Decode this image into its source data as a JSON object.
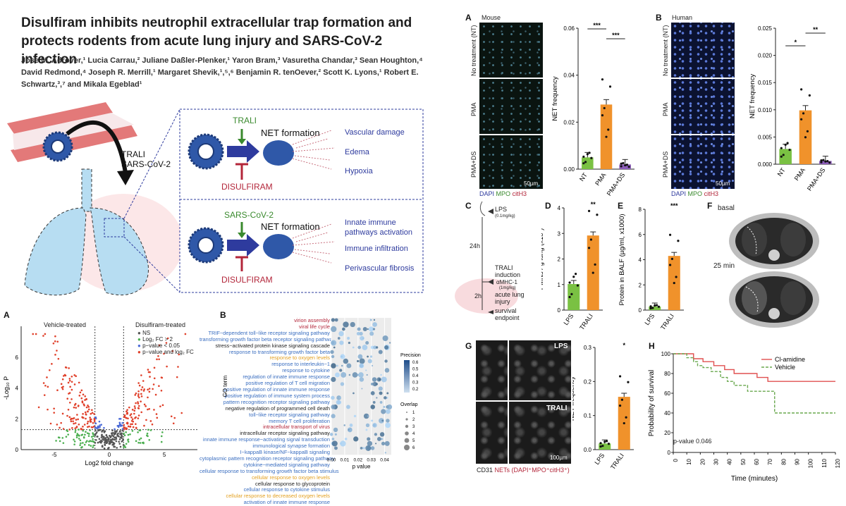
{
  "header": {
    "title": "Disulfiram inhibits neutrophil extracellular trap formation and protects rodents from acute lung injury and SARS-CoV-2 infection",
    "authors": "Jose M. Adrover,¹ Lucia Carrau,² Juliane Daßler-Plenker,¹ Yaron Bram,³ Vasuretha Chandar,³ Sean Houghton,⁴ David Redmond,⁴ Joseph R. Merrill,¹ Margaret Shevik,¹,⁵,⁶ Benjamin R. tenOever,² Scott K. Lyons,¹ Robert E. Schwartz,³,⁷ and Mikala Egeblad¹"
  },
  "schematic": {
    "trali_sars": "TRALI\nSARS-CoV-2",
    "box1": {
      "trigger": "TRALI",
      "net": "NET formation",
      "drug": "DISULFIRAM",
      "effects": [
        "Vascular damage",
        "Edema",
        "Hypoxia"
      ]
    },
    "box2": {
      "trigger": "SARS-CoV-2",
      "net": "NET formation",
      "drug": "DISULFIRAM",
      "effects": [
        "Innate immune pathways activation",
        "Immune infiltration",
        "Perivascular fibrosis"
      ]
    },
    "colors": {
      "blue": "#2e3b9e",
      "green": "#3a8a2e",
      "red": "#b3263a"
    }
  },
  "panelA_mouse": {
    "letter": "A",
    "species": "Mouse",
    "rows": [
      "No treatment (NT)",
      "PMA",
      "PMA+DS"
    ],
    "scale": "50µm",
    "stain": {
      "dapi": "DAPI",
      "mpo": "MPO",
      "cith3": "citH3"
    },
    "sig": [
      "***",
      "***"
    ]
  },
  "panelB_human": {
    "letter": "B",
    "species": "Human",
    "rows": [
      "No treatment (NT)",
      "PMA",
      "PMA+DS"
    ],
    "scale": "50µm",
    "stain": {
      "dapi": "DAPI",
      "mpo": "MPO",
      "cith3": "citH3"
    },
    "sig": [
      "*",
      "**"
    ]
  },
  "panelC": {
    "letter": "C",
    "lps": "LPS",
    "lps_dose": "(0.1mg/kg)",
    "t1": "24h",
    "trali": "TRALI induction",
    "amhc": "αMHC-1",
    "amhc_dose": "(1mg/kg)",
    "t2": "2h",
    "ali": "acute lung injury",
    "end": "survival endpoint"
  },
  "panelD": {
    "letter": "D",
    "sig": "**"
  },
  "panelE": {
    "letter": "E",
    "sig": "***"
  },
  "panelF": {
    "letter": "F",
    "t1": "basal",
    "t2": "25 min"
  },
  "panelG": {
    "letter": "G",
    "lps": "LPS",
    "trali": "TRALI",
    "scale": "100µm",
    "caption_cd31": "CD31",
    "caption_nets": "NETs (DAPI⁺MPO⁺citH3⁺)",
    "sig": "*"
  },
  "panelH": {
    "letter": "H",
    "pval": "p-value 0.046"
  },
  "volcano": {
    "letter": "A",
    "left_label": "Vehicle-treated",
    "right_label": "Disulfiram-treated",
    "legend": [
      "NS",
      "Log₂ FC > 2",
      "p−value < 0.05",
      "p−value and log₂ FC"
    ]
  },
  "goplot": {
    "letter": "B",
    "terms": [
      {
        "t": "virion assembly",
        "c": "#b3263a"
      },
      {
        "t": "viral life cycle",
        "c": "#b3263a"
      },
      {
        "t": "TRIF−dependent toll−like receptor signaling pathway",
        "c": "#3a6ec0"
      },
      {
        "t": "transforming growth factor beta receptor signaling pathway",
        "c": "#3a6ec0"
      },
      {
        "t": "stress−activated protein kinase signaling cascade",
        "c": "#222"
      },
      {
        "t": "response to transforming growth factor beta",
        "c": "#3a6ec0"
      },
      {
        "t": "response to oxygen levels",
        "c": "#e3a020"
      },
      {
        "t": "response to interleukin−1",
        "c": "#3a6ec0"
      },
      {
        "t": "response to cytokine",
        "c": "#3a6ec0"
      },
      {
        "t": "regulation of innate immune response",
        "c": "#3a6ec0"
      },
      {
        "t": "positive regulation of T cell migration",
        "c": "#3a6ec0"
      },
      {
        "t": "positive regulation of innate immune response",
        "c": "#3a6ec0"
      },
      {
        "t": "positive regulation of immune system process",
        "c": "#3a6ec0"
      },
      {
        "t": "pattern recognition receptor signaling pathway",
        "c": "#3a6ec0"
      },
      {
        "t": "negative regulation of programmed cell death",
        "c": "#222"
      },
      {
        "t": "toll−like receptor signaling pathway",
        "c": "#3a6ec0"
      },
      {
        "t": "memory T cell proliferation",
        "c": "#3a6ec0"
      },
      {
        "t": "intracellular transport of virus",
        "c": "#b3263a"
      },
      {
        "t": "intracellular receptor signaling pathway",
        "c": "#222"
      },
      {
        "t": "innate immune response−activating signal transduction",
        "c": "#3a6ec0"
      },
      {
        "t": "immunological synapse formation",
        "c": "#3a6ec0"
      },
      {
        "t": "I−kappaB kinase/NF−kappaB signaling",
        "c": "#3a6ec0"
      },
      {
        "t": "cytoplasmic pattern recognition receptor signaling pathway",
        "c": "#3a6ec0"
      },
      {
        "t": "cytokine−mediated signaling pathway",
        "c": "#3a6ec0"
      },
      {
        "t": "cellular response to transforming growth factor beta stimulus",
        "c": "#3a6ec0"
      },
      {
        "t": "cellular response to oxygen levels",
        "c": "#e3a020"
      },
      {
        "t": "cellular response to glycoprotein",
        "c": "#222"
      },
      {
        "t": "cellular response to cytokine stimulus",
        "c": "#3a6ec0"
      },
      {
        "t": "cellular response to decreased oxygen levels",
        "c": "#e3a020"
      },
      {
        "t": "activation of innate immune response",
        "c": "#3a6ec0"
      }
    ],
    "legend_precision": "Precision",
    "legend_overlap": "Overlap"
  },
  "chart_data": [
    {
      "type": "bar",
      "panel": "A",
      "categories": [
        "NT",
        "PMA",
        "PMA+DS"
      ],
      "values": [
        0.005,
        0.0275,
        0.002
      ],
      "ylabel": "NET frequency",
      "ylim": [
        0,
        0.06
      ],
      "yticks": [
        "0.00",
        "0.02",
        "0.04",
        "0.06"
      ],
      "colors": [
        "#7ac143",
        "#f0922b",
        "#8b5cb8"
      ]
    },
    {
      "type": "bar",
      "panel": "B",
      "categories": [
        "NT",
        "PMA",
        "PMA+DS"
      ],
      "values": [
        0.0028,
        0.0099,
        0.0006
      ],
      "ylabel": "NET frequency",
      "ylim": [
        0,
        0.025
      ],
      "yticks": [
        "0.000",
        "0.005",
        "0.010",
        "0.015",
        "0.020",
        "0.025"
      ],
      "colors": [
        "#7ac143",
        "#f0922b",
        "#8b5cb8"
      ]
    },
    {
      "type": "bar",
      "panel": "D",
      "categories": [
        "LPS",
        "TRALI"
      ],
      "values": [
        1.02,
        2.92
      ],
      "ylabel": "PMNs / g lung (x10⁷)",
      "ylim": [
        0,
        4
      ],
      "yticks": [
        "0",
        "1",
        "2",
        "3",
        "4"
      ],
      "colors": [
        "#7ac143",
        "#f0922b"
      ]
    },
    {
      "type": "bar",
      "panel": "E",
      "categories": [
        "LPS",
        "TRALI"
      ],
      "values": [
        0.28,
        4.3
      ],
      "ylabel": "Protein in BALF (µg/ml, x1000)",
      "ylim": [
        0,
        8
      ],
      "yticks": [
        "0",
        "2",
        "4",
        "6",
        "8"
      ],
      "colors": [
        "#7ac143",
        "#f0922b"
      ]
    },
    {
      "type": "bar",
      "panel": "G",
      "categories": [
        "LPS",
        "TRALI"
      ],
      "values": [
        0.018,
        0.155
      ],
      "ylabel": "NET frequency",
      "ylim": [
        0,
        0.3
      ],
      "yticks": [
        "0.0",
        "0.1",
        "0.2",
        "0.3"
      ],
      "colors": [
        "#7ac143",
        "#f0922b"
      ]
    },
    {
      "type": "line",
      "panel": "H",
      "xlabel": "Time (minutes)",
      "ylabel": "Probability of survival",
      "xlim": [
        0,
        120
      ],
      "ylim": [
        0,
        100
      ],
      "xticks": [
        "0",
        "10",
        "20",
        "30",
        "40",
        "50",
        "60",
        "70",
        "80",
        "90",
        "100",
        "110",
        "120"
      ],
      "yticks": [
        "0",
        "20",
        "40",
        "60",
        "80",
        "100"
      ],
      "series": [
        {
          "name": "Cl-amidine",
          "color": "#e05050",
          "x": [
            0,
            12,
            15,
            22,
            30,
            38,
            45,
            55,
            62,
            70,
            120
          ],
          "y": [
            100,
            100,
            95,
            92,
            88,
            84,
            80,
            80,
            76,
            72,
            72
          ]
        },
        {
          "name": "Vehicle",
          "color": "#6aa84f",
          "x": [
            0,
            10,
            15,
            18,
            22,
            28,
            35,
            40,
            45,
            55,
            62,
            75,
            120
          ],
          "y": [
            100,
            96,
            92,
            88,
            86,
            82,
            76,
            72,
            68,
            62,
            62,
            40,
            40
          ]
        }
      ]
    },
    {
      "type": "scatter",
      "panel": "volcano",
      "xlabel": "Log2 fold change",
      "ylabel": "-Log₁₀ P",
      "xlim": [
        -8,
        8
      ],
      "ylim": [
        0,
        8
      ],
      "xticks": [
        "-5",
        "0",
        "5"
      ],
      "yticks": [
        "0",
        "2",
        "4",
        "6"
      ]
    },
    {
      "type": "scatter",
      "panel": "goplot",
      "xlabel": "p value",
      "ylabel": "GO term",
      "xlim": [
        0,
        0.045
      ],
      "xticks": [
        "0.00",
        "0.01",
        "0.02",
        "0.03",
        "0.04"
      ],
      "precision_ticks": [
        "0.6",
        "0.5",
        "0.4",
        "0.3",
        "0.2"
      ],
      "overlap_ticks": [
        "1",
        "2",
        "3",
        "4",
        "5",
        "6"
      ]
    }
  ]
}
